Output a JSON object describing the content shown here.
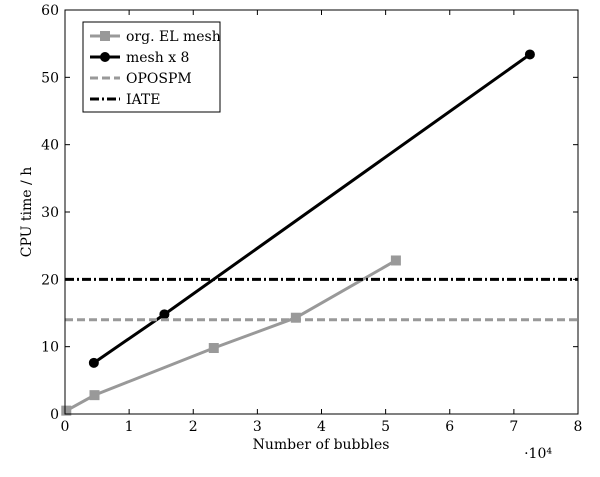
{
  "chart_data": {
    "type": "line",
    "xlabel": "Number of bubbles",
    "ylabel": "CPU time / h",
    "x_multiplier_label": "·10⁴",
    "xlim": [
      0,
      8
    ],
    "ylim": [
      0,
      60
    ],
    "xticks": [
      "0",
      "1",
      "2",
      "3",
      "4",
      "5",
      "6",
      "7",
      "8"
    ],
    "yticks": [
      "0",
      "10",
      "20",
      "30",
      "40",
      "50",
      "60"
    ],
    "legend_position": "top-left",
    "series": [
      {
        "name": "org. EL mesh",
        "color": "#999999",
        "marker": "square",
        "style": "solid",
        "x": [
          0.02,
          0.46,
          2.32,
          3.6,
          5.16
        ],
        "y": [
          0.5,
          2.8,
          9.8,
          14.3,
          22.8
        ]
      },
      {
        "name": "mesh x 8",
        "color": "#000000",
        "marker": "circle",
        "style": "solid",
        "x": [
          0.45,
          1.55,
          7.25
        ],
        "y": [
          7.6,
          14.8,
          53.4
        ]
      },
      {
        "name": "OPOSPM",
        "color": "#999999",
        "marker": "none",
        "style": "dashed",
        "x": [
          0,
          8
        ],
        "y": [
          14,
          14
        ]
      },
      {
        "name": "IATE",
        "color": "#000000",
        "marker": "none",
        "style": "dashdot",
        "x": [
          0,
          8
        ],
        "y": [
          20,
          20
        ]
      }
    ]
  }
}
